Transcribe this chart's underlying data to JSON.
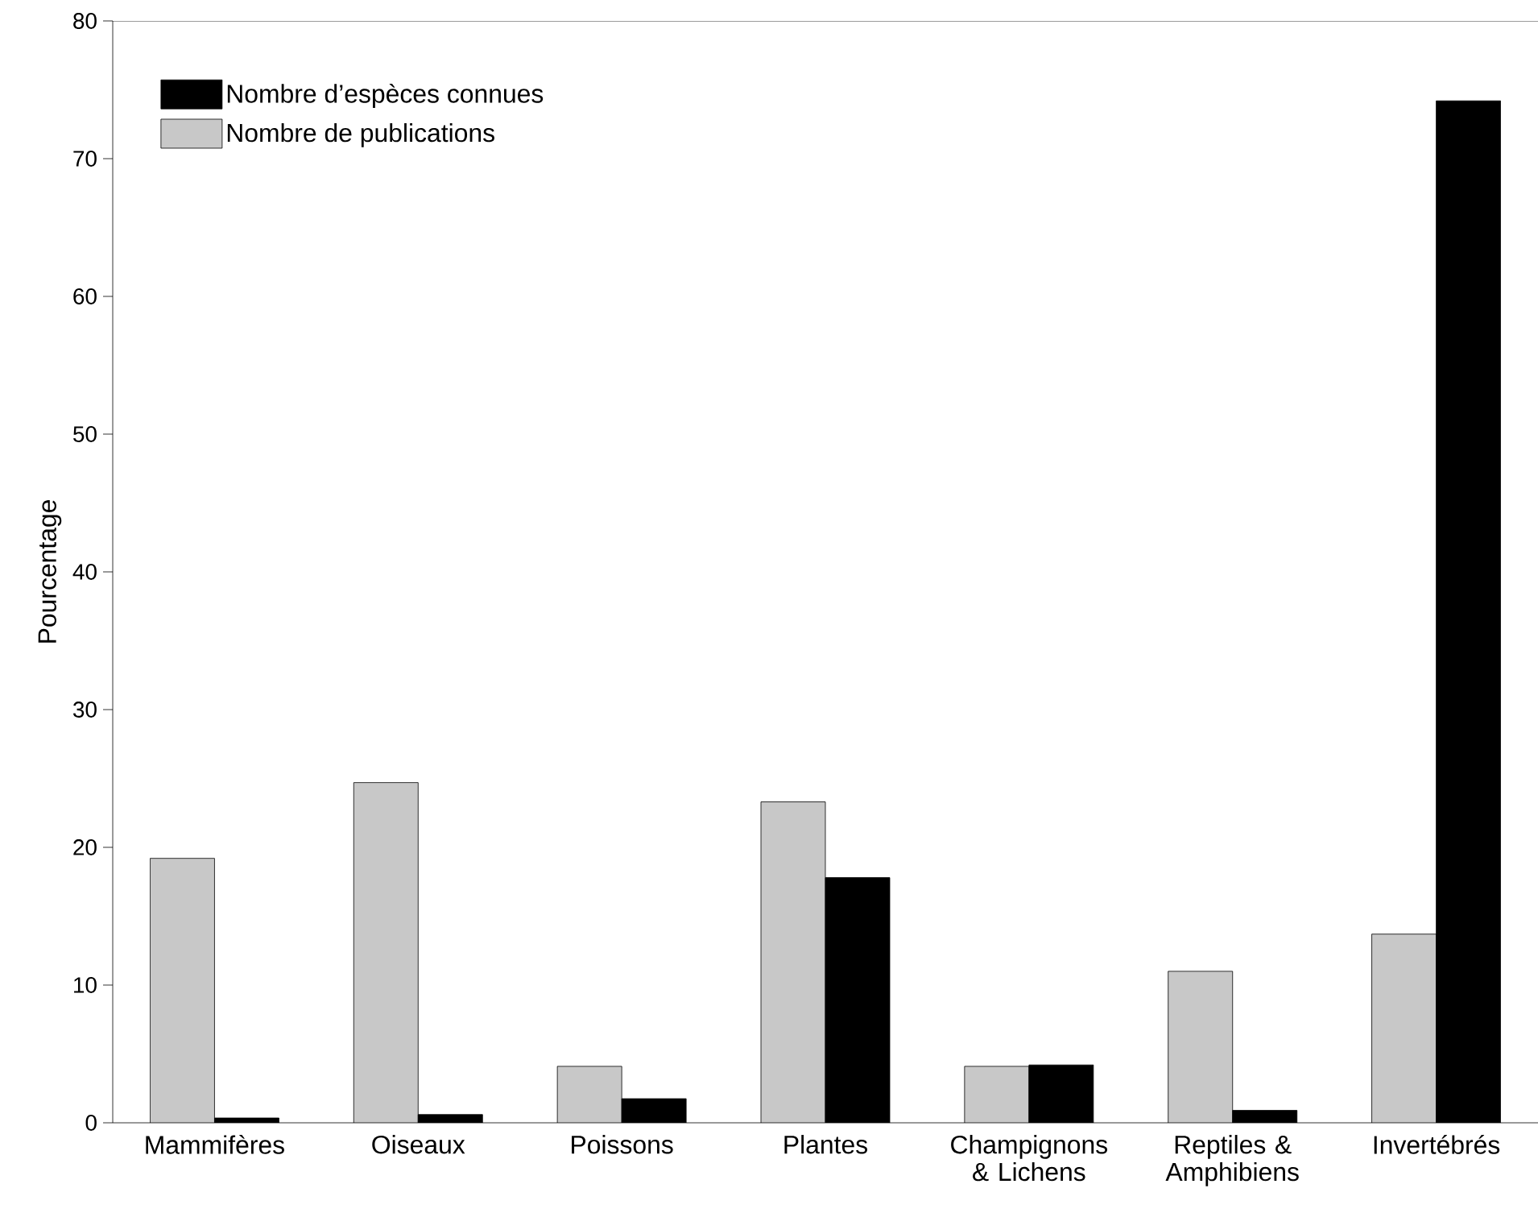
{
  "chart_data": {
    "type": "bar",
    "ylabel": "Pourcentage",
    "categories": [
      "Mammifères",
      "Oiseaux",
      "Poissons",
      "Plantes",
      "Champignons & Lichens",
      "Reptiles & Amphibiens",
      "Invertébrés"
    ],
    "series": [
      {
        "name": "Nombre de publications",
        "color": "#c8c8c8",
        "values": [
          19.2,
          24.7,
          4.1,
          23.3,
          4.1,
          11.0,
          13.7
        ]
      },
      {
        "name": "Nombre d’espèces connues",
        "color": "#000000",
        "values": [
          0.35,
          0.6,
          1.75,
          17.8,
          4.2,
          0.9,
          74.2
        ]
      }
    ],
    "ylim": [
      0,
      80
    ],
    "yticks": [
      0,
      10,
      20,
      30,
      40,
      50,
      60,
      70,
      80
    ],
    "grid": false,
    "legend": "top left"
  }
}
